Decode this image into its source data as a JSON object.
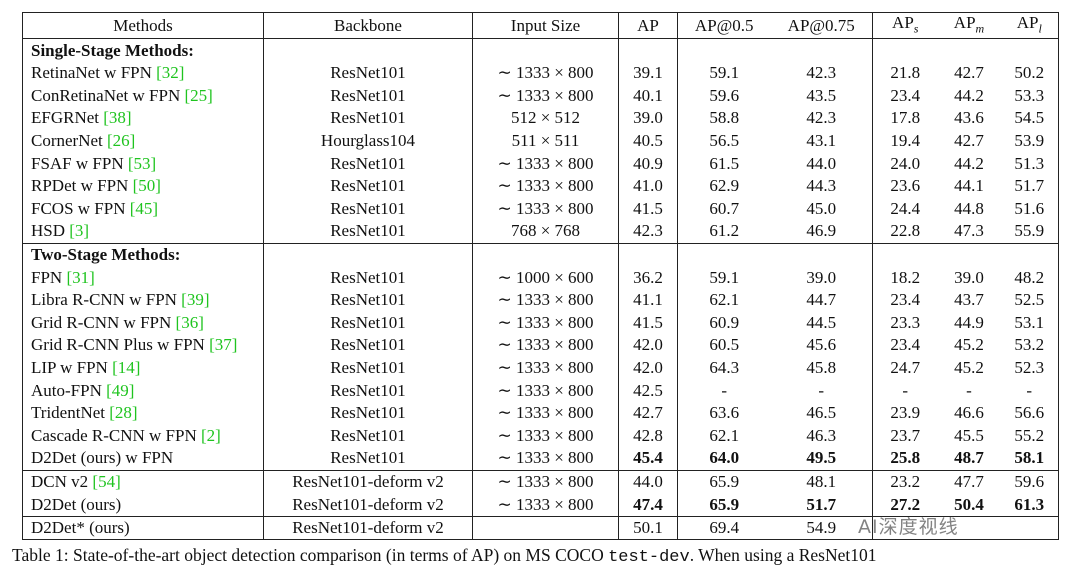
{
  "table": {
    "headers": [
      {
        "text": "Methods"
      },
      {
        "text": "Backbone"
      },
      {
        "text": "Input Size"
      },
      {
        "text": "AP"
      },
      {
        "text": "AP@0.5"
      },
      {
        "text": "AP@0.75"
      },
      {
        "text": "AP",
        "sub": "s"
      },
      {
        "text": "AP",
        "sub": "m"
      },
      {
        "text": "AP",
        "sub": "l"
      }
    ],
    "groups": [
      {
        "title": "Single-Stage Methods:",
        "rows": [
          {
            "method": "RetinaNet w FPN",
            "cite": "[32]",
            "cells": [
              "ResNet101",
              "∼ 1333 × 800",
              "39.1",
              "59.1",
              "42.3",
              "21.8",
              "42.7",
              "50.2"
            ]
          },
          {
            "method": "ConRetinaNet w FPN",
            "cite": "[25]",
            "cells": [
              "ResNet101",
              "∼ 1333 × 800",
              "40.1",
              "59.6",
              "43.5",
              "23.4",
              "44.2",
              "53.3"
            ]
          },
          {
            "method": "EFGRNet",
            "cite": "[38]",
            "cells": [
              "ResNet101",
              "512 × 512",
              "39.0",
              "58.8",
              "42.3",
              "17.8",
              "43.6",
              "54.5"
            ]
          },
          {
            "method": "CornerNet",
            "cite": "[26]",
            "cells": [
              "Hourglass104",
              "511 × 511",
              "40.5",
              "56.5",
              "43.1",
              "19.4",
              "42.7",
              "53.9"
            ]
          },
          {
            "method": "FSAF w FPN",
            "cite": "[53]",
            "cells": [
              "ResNet101",
              "∼ 1333 × 800",
              "40.9",
              "61.5",
              "44.0",
              "24.0",
              "44.2",
              "51.3"
            ]
          },
          {
            "method": "RPDet w FPN",
            "cite": "[50]",
            "cells": [
              "ResNet101",
              "∼ 1333 × 800",
              "41.0",
              "62.9",
              "44.3",
              "23.6",
              "44.1",
              "51.7"
            ]
          },
          {
            "method": "FCOS w FPN",
            "cite": "[45]",
            "cells": [
              "ResNet101",
              "∼ 1333 × 800",
              "41.5",
              "60.7",
              "45.0",
              "24.4",
              "44.8",
              "51.6"
            ]
          },
          {
            "method": "HSD",
            "cite": "[3]",
            "cells": [
              "ResNet101",
              "768 × 768",
              "42.3",
              "61.2",
              "46.9",
              "22.8",
              "47.3",
              "55.9"
            ]
          }
        ]
      },
      {
        "title": "Two-Stage Methods:",
        "rows": [
          {
            "method": "FPN",
            "cite": "[31]",
            "cells": [
              "ResNet101",
              "∼ 1000 × 600",
              "36.2",
              "59.1",
              "39.0",
              "18.2",
              "39.0",
              "48.2"
            ]
          },
          {
            "method": "Libra R-CNN w FPN",
            "cite": "[39]",
            "cells": [
              "ResNet101",
              "∼ 1333 × 800",
              "41.1",
              "62.1",
              "44.7",
              "23.4",
              "43.7",
              "52.5"
            ]
          },
          {
            "method": "Grid R-CNN w FPN",
            "cite": "[36]",
            "cells": [
              "ResNet101",
              "∼ 1333 × 800",
              "41.5",
              "60.9",
              "44.5",
              "23.3",
              "44.9",
              "53.1"
            ]
          },
          {
            "method": "Grid R-CNN Plus w FPN",
            "cite": "[37]",
            "cells": [
              "ResNet101",
              "∼ 1333 × 800",
              "42.0",
              "60.5",
              "45.6",
              "23.4",
              "45.2",
              "53.2"
            ]
          },
          {
            "method": "LIP w FPN",
            "cite": "[14]",
            "cells": [
              "ResNet101",
              "∼ 1333 × 800",
              "42.0",
              "64.3",
              "45.8",
              "24.7",
              "45.2",
              "52.3"
            ]
          },
          {
            "method": "Auto-FPN",
            "cite": "[49]",
            "cells": [
              "ResNet101",
              "∼ 1333 × 800",
              "42.5",
              "-",
              "-",
              "-",
              "-",
              "-"
            ]
          },
          {
            "method": "TridentNet",
            "cite": "[28]",
            "cells": [
              "ResNet101",
              "∼ 1333 × 800",
              "42.7",
              "63.6",
              "46.5",
              "23.9",
              "46.6",
              "56.6"
            ]
          },
          {
            "method": "Cascade R-CNN w FPN",
            "cite": "[2]",
            "cells": [
              "ResNet101",
              "∼ 1333 × 800",
              "42.8",
              "62.1",
              "46.3",
              "23.7",
              "45.5",
              "55.2"
            ]
          },
          {
            "method": "D2Det (ours) w FPN",
            "cells": [
              "ResNet101",
              "∼ 1333 × 800",
              "45.4",
              "64.0",
              "49.5",
              "25.8",
              "48.7",
              "58.1"
            ],
            "bold": [
              2,
              3,
              4,
              5,
              6,
              7
            ]
          }
        ]
      },
      {
        "rows": [
          {
            "method": "DCN v2",
            "cite": "[54]",
            "cells": [
              "ResNet101-deform v2",
              "∼ 1333 × 800",
              "44.0",
              "65.9",
              "48.1",
              "23.2",
              "47.7",
              "59.6"
            ]
          },
          {
            "method": "D2Det (ours)",
            "cells": [
              "ResNet101-deform v2",
              "∼ 1333 × 800",
              "47.4",
              "65.9",
              "51.7",
              "27.2",
              "50.4",
              "61.3"
            ],
            "bold": [
              2,
              3,
              4,
              5,
              6,
              7
            ]
          }
        ]
      },
      {
        "rows": [
          {
            "method": "D2Det* (ours)",
            "cells": [
              "ResNet101-deform v2",
              null,
              "50.1",
              "69.4",
              "54.9"
            ]
          }
        ]
      }
    ]
  },
  "caption": {
    "text": "Table 1: State-of-the-art object detection comparison (in terms of AP) on MS COCO ",
    "code": "test-dev",
    "text2": ". When using a ResNet101"
  },
  "watermark": "AI深度视线"
}
